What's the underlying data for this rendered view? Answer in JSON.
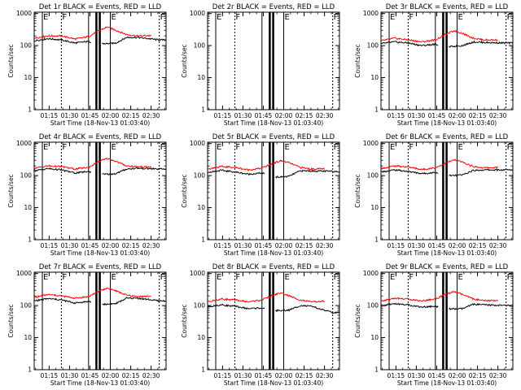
{
  "figure": {
    "x_tick_labels": [
      "01:15",
      "01:30",
      "01:45",
      "02:00",
      "02:15",
      "02:30"
    ],
    "y_tick_labels": [
      "1",
      "10",
      "100",
      "1000"
    ],
    "xlabel": "Start Time (18-Nov-13 01:03:40)",
    "ylabel": "Counts/sec",
    "markers": {
      "e": "E",
      "f": "F"
    },
    "colors": {
      "events": "#000000",
      "lld": "#ff0000",
      "background": "#ffffff"
    }
  },
  "chart_data": [
    {
      "type": "line",
      "title": "Det 1r BLACK = Events, RED = LLD",
      "xlabel": "Start Time (18-Nov-13 01:03:40)",
      "ylabel": "Counts/sec",
      "y_scale": "log",
      "ylim": [
        1,
        1100
      ],
      "xlim": [
        "01:04",
        "02:41"
      ],
      "x": [
        "01:04",
        "01:14",
        "01:24",
        "01:34",
        "01:44",
        "01:52",
        "01:58",
        "02:04",
        "02:12",
        "02:20",
        "02:36"
      ],
      "series": [
        {
          "name": "Events",
          "color": "#000000",
          "values": [
            140,
            165,
            150,
            120,
            135,
            115,
            115,
            120,
            180,
            180,
            150
          ]
        },
        {
          "name": "LLD",
          "color": "#ff0000",
          "values": [
            170,
            200,
            200,
            160,
            190,
            300,
            380,
            300,
            220,
            200,
            210
          ]
        }
      ]
    },
    {
      "type": "line",
      "title": "Det 2r BLACK = Events, RED = LLD",
      "xlabel": "Start Time (18-Nov-13 01:03:40)",
      "ylabel": "Counts/sec",
      "y_scale": "log",
      "ylim": [
        1,
        1100
      ],
      "xlim": [
        "01:04",
        "02:41"
      ],
      "x": [],
      "series": []
    },
    {
      "type": "line",
      "title": "Det 3r BLACK = Events, RED = LLD",
      "xlabel": "Start Time (18-Nov-13 01:03:40)",
      "ylabel": "Counts/sec",
      "y_scale": "log",
      "ylim": [
        1,
        1100
      ],
      "xlim": [
        "01:04",
        "02:41"
      ],
      "x": [
        "01:04",
        "01:14",
        "01:24",
        "01:34",
        "01:44",
        "01:52",
        "01:58",
        "02:04",
        "02:12",
        "02:20",
        "02:36"
      ],
      "series": [
        {
          "name": "Events",
          "color": "#000000",
          "values": [
            115,
            130,
            120,
            100,
            110,
            90,
            95,
            100,
            130,
            125,
            120
          ]
        },
        {
          "name": "LLD",
          "color": "#ff0000",
          "values": [
            140,
            170,
            150,
            130,
            150,
            230,
            290,
            240,
            170,
            150,
            150
          ]
        }
      ]
    },
    {
      "type": "line",
      "title": "Det 4r BLACK = Events, RED = LLD",
      "xlabel": "Start Time (18-Nov-13 01:03:40)",
      "ylabel": "Counts/sec",
      "y_scale": "log",
      "ylim": [
        1,
        1100
      ],
      "xlim": [
        "01:04",
        "02:41"
      ],
      "x": [
        "01:04",
        "01:14",
        "01:24",
        "01:34",
        "01:44",
        "01:52",
        "01:58",
        "02:04",
        "02:12",
        "02:20",
        "02:36"
      ],
      "series": [
        {
          "name": "Events",
          "color": "#000000",
          "values": [
            140,
            165,
            150,
            120,
            135,
            110,
            110,
            115,
            160,
            170,
            160
          ]
        },
        {
          "name": "LLD",
          "color": "#ff0000",
          "values": [
            170,
            200,
            190,
            160,
            180,
            280,
            340,
            280,
            200,
            190,
            180
          ]
        }
      ]
    },
    {
      "type": "line",
      "title": "Det 5r BLACK = Events, RED = LLD",
      "xlabel": "Start Time (18-Nov-13 01:03:40)",
      "ylabel": "Counts/sec",
      "y_scale": "log",
      "ylim": [
        1,
        1100
      ],
      "xlim": [
        "01:04",
        "02:41"
      ],
      "x": [
        "01:04",
        "01:14",
        "01:24",
        "01:34",
        "01:44",
        "01:52",
        "01:58",
        "02:04",
        "02:12",
        "02:20",
        "02:36"
      ],
      "series": [
        {
          "name": "Events",
          "color": "#000000",
          "values": [
            125,
            145,
            130,
            110,
            120,
            90,
            90,
            95,
            140,
            140,
            135
          ]
        },
        {
          "name": "LLD",
          "color": "#ff0000",
          "values": [
            160,
            190,
            180,
            150,
            170,
            240,
            290,
            250,
            180,
            160,
            165
          ]
        }
      ]
    },
    {
      "type": "line",
      "title": "Det 6r BLACK = Events, RED = LLD",
      "xlabel": "Start Time (18-Nov-13 01:03:40)",
      "ylabel": "Counts/sec",
      "y_scale": "log",
      "ylim": [
        1,
        1100
      ],
      "xlim": [
        "01:04",
        "02:41"
      ],
      "x": [
        "01:04",
        "01:14",
        "01:24",
        "01:34",
        "01:44",
        "01:52",
        "01:58",
        "02:04",
        "02:12",
        "02:20",
        "02:36"
      ],
      "series": [
        {
          "name": "Events",
          "color": "#000000",
          "values": [
            130,
            150,
            135,
            115,
            125,
            100,
            100,
            105,
            145,
            150,
            150
          ]
        },
        {
          "name": "LLD",
          "color": "#ff0000",
          "values": [
            165,
            200,
            185,
            155,
            175,
            250,
            310,
            260,
            190,
            175,
            180
          ]
        }
      ]
    },
    {
      "type": "line",
      "title": "Det 7r BLACK = Events, RED = LLD",
      "xlabel": "Start Time (18-Nov-13 01:03:40)",
      "ylabel": "Counts/sec",
      "y_scale": "log",
      "ylim": [
        1,
        1100
      ],
      "xlim": [
        "01:04",
        "02:41"
      ],
      "x": [
        "01:04",
        "01:14",
        "01:24",
        "01:34",
        "01:44",
        "01:52",
        "01:58",
        "02:04",
        "02:12",
        "02:20",
        "02:36"
      ],
      "series": [
        {
          "name": "Events",
          "color": "#000000",
          "values": [
            140,
            165,
            150,
            120,
            135,
            110,
            110,
            115,
            170,
            170,
            140
          ]
        },
        {
          "name": "LLD",
          "color": "#ff0000",
          "values": [
            180,
            220,
            200,
            170,
            190,
            290,
            350,
            290,
            210,
            190,
            200
          ]
        }
      ]
    },
    {
      "type": "line",
      "title": "Det 8r BLACK = Events, RED = LLD",
      "xlabel": "Start Time (18-Nov-13 01:03:40)",
      "ylabel": "Counts/sec",
      "y_scale": "log",
      "ylim": [
        1,
        1100
      ],
      "xlim": [
        "01:04",
        "02:41"
      ],
      "x": [
        "01:04",
        "01:14",
        "01:24",
        "01:34",
        "01:44",
        "01:52",
        "01:58",
        "02:04",
        "02:12",
        "02:20",
        "02:36"
      ],
      "series": [
        {
          "name": "Events",
          "color": "#000000",
          "values": [
            90,
            105,
            95,
            80,
            85,
            70,
            70,
            72,
            100,
            95,
            60
          ]
        },
        {
          "name": "LLD",
          "color": "#ff0000",
          "values": [
            130,
            160,
            150,
            130,
            150,
            210,
            250,
            200,
            150,
            130,
            140
          ]
        }
      ]
    },
    {
      "type": "line",
      "title": "Det 9r BLACK = Events, RED = LLD",
      "xlabel": "Start Time (18-Nov-13 01:03:40)",
      "ylabel": "Counts/sec",
      "y_scale": "log",
      "ylim": [
        1,
        1100
      ],
      "xlim": [
        "01:04",
        "02:41"
      ],
      "x": [
        "01:04",
        "01:14",
        "01:24",
        "01:34",
        "01:44",
        "01:52",
        "01:58",
        "02:04",
        "02:12",
        "02:20",
        "02:36"
      ],
      "series": [
        {
          "name": "Events",
          "color": "#000000",
          "values": [
            100,
            115,
            105,
            90,
            95,
            80,
            78,
            80,
            110,
            105,
            100
          ]
        },
        {
          "name": "LLD",
          "color": "#ff0000",
          "values": [
            140,
            170,
            160,
            140,
            160,
            230,
            270,
            220,
            160,
            140,
            150
          ]
        }
      ]
    }
  ]
}
